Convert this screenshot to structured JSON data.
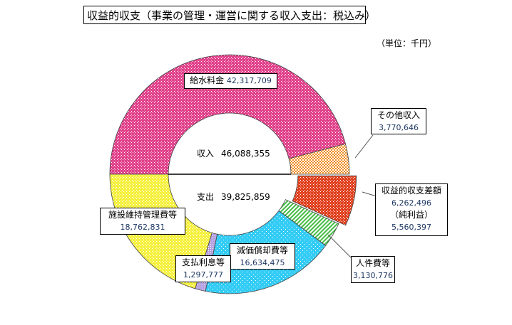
{
  "chart_data": {
    "type": "pie",
    "subtype": "donut",
    "title": "収益的収支（事業の管理・運営に関する収入支出：税込み）",
    "unit": "（単位：千円）",
    "income": {
      "label": "収入",
      "total": "46,088,355",
      "slices": [
        {
          "name": "給水料金",
          "value": 42317709,
          "value_label": "42,317,709",
          "color": "#e0408a"
        },
        {
          "name": "その他収入",
          "value": 3770646,
          "value_label": "3,770,646",
          "color": "#f08c1e"
        }
      ]
    },
    "expense": {
      "label": "支出",
      "total": "39,825,859",
      "slices": [
        {
          "name": "収益的収支差額",
          "value": 6262496,
          "value_label": "6,262,496",
          "extra_label": "（純利益）",
          "extra_value": "5,560,397",
          "color": "#e0401e",
          "exploded": true
        },
        {
          "name": "人件費等",
          "value": 3130776,
          "value_label": "3,130,776",
          "color": "#44bb44"
        },
        {
          "name": "減価償却費等",
          "value": 16634475,
          "value_label": "16,634,475",
          "color": "#33ccf5"
        },
        {
          "name": "支払利息等",
          "value": 1297777,
          "value_label": "1,297,777",
          "color": "#b4a0e0"
        },
        {
          "name": "施設維持管理費等",
          "value": 18762831,
          "value_label": "18,762,831",
          "color": "#f5f03c"
        }
      ]
    }
  }
}
